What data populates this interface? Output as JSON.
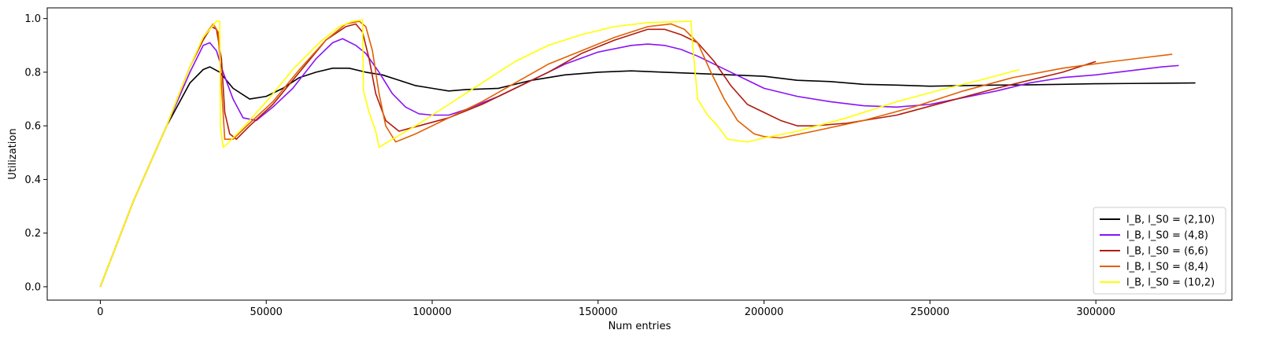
{
  "chart_data": {
    "type": "line",
    "title": "",
    "xlabel": "Num entries",
    "ylabel": "Utilization",
    "xlim": [
      -16000,
      341000
    ],
    "ylim": [
      -0.05,
      1.04
    ],
    "x_ticks": [
      0,
      50000,
      100000,
      150000,
      200000,
      250000,
      300000
    ],
    "y_ticks": [
      0.0,
      0.2,
      0.4,
      0.6,
      0.8,
      1.0
    ],
    "x_tick_labels": [
      "0",
      "50000",
      "100000",
      "150000",
      "200000",
      "250000",
      "300000"
    ],
    "y_tick_labels": [
      "0.0",
      "0.2",
      "0.4",
      "0.6",
      "0.8",
      "1.0"
    ],
    "grid": false,
    "legend_position": "lower-right",
    "series": [
      {
        "name": "l_B, l_S0 = (2,10)",
        "color": "#000000",
        "points": [
          [
            0,
            0.0
          ],
          [
            10000,
            0.32
          ],
          [
            20000,
            0.6
          ],
          [
            27000,
            0.76
          ],
          [
            31000,
            0.81
          ],
          [
            33000,
            0.82
          ],
          [
            36000,
            0.8
          ],
          [
            40000,
            0.74
          ],
          [
            45000,
            0.7
          ],
          [
            50000,
            0.71
          ],
          [
            55000,
            0.74
          ],
          [
            60000,
            0.78
          ],
          [
            65000,
            0.8
          ],
          [
            70000,
            0.815
          ],
          [
            75000,
            0.815
          ],
          [
            80000,
            0.8
          ],
          [
            85000,
            0.79
          ],
          [
            90000,
            0.77
          ],
          [
            95000,
            0.75
          ],
          [
            100000,
            0.74
          ],
          [
            105000,
            0.73
          ],
          [
            110000,
            0.735
          ],
          [
            120000,
            0.74
          ],
          [
            130000,
            0.77
          ],
          [
            140000,
            0.79
          ],
          [
            150000,
            0.8
          ],
          [
            160000,
            0.805
          ],
          [
            170000,
            0.8
          ],
          [
            180000,
            0.795
          ],
          [
            190000,
            0.79
          ],
          [
            200000,
            0.785
          ],
          [
            210000,
            0.77
          ],
          [
            220000,
            0.765
          ],
          [
            230000,
            0.755
          ],
          [
            240000,
            0.752
          ],
          [
            250000,
            0.748
          ],
          [
            260000,
            0.75
          ],
          [
            270000,
            0.752
          ],
          [
            280000,
            0.753
          ],
          [
            290000,
            0.755
          ],
          [
            300000,
            0.757
          ],
          [
            310000,
            0.758
          ],
          [
            320000,
            0.759
          ],
          [
            330000,
            0.76
          ]
        ]
      },
      {
        "name": "l_B, l_S0 = (4,8)",
        "color": "#8a13f5",
        "points": [
          [
            0,
            0.0
          ],
          [
            10000,
            0.32
          ],
          [
            20000,
            0.6
          ],
          [
            27000,
            0.8
          ],
          [
            31000,
            0.9
          ],
          [
            33000,
            0.91
          ],
          [
            35000,
            0.88
          ],
          [
            37000,
            0.8
          ],
          [
            40000,
            0.7
          ],
          [
            43000,
            0.63
          ],
          [
            47000,
            0.62
          ],
          [
            52000,
            0.67
          ],
          [
            58000,
            0.74
          ],
          [
            65000,
            0.85
          ],
          [
            70000,
            0.91
          ],
          [
            73000,
            0.925
          ],
          [
            77000,
            0.9
          ],
          [
            80000,
            0.87
          ],
          [
            84000,
            0.8
          ],
          [
            88000,
            0.72
          ],
          [
            92000,
            0.67
          ],
          [
            96000,
            0.645
          ],
          [
            100000,
            0.64
          ],
          [
            105000,
            0.64
          ],
          [
            110000,
            0.66
          ],
          [
            120000,
            0.71
          ],
          [
            130000,
            0.77
          ],
          [
            140000,
            0.83
          ],
          [
            150000,
            0.875
          ],
          [
            160000,
            0.9
          ],
          [
            165000,
            0.905
          ],
          [
            170000,
            0.9
          ],
          [
            175000,
            0.885
          ],
          [
            180000,
            0.86
          ],
          [
            185000,
            0.83
          ],
          [
            190000,
            0.8
          ],
          [
            195000,
            0.77
          ],
          [
            200000,
            0.74
          ],
          [
            210000,
            0.71
          ],
          [
            220000,
            0.69
          ],
          [
            230000,
            0.675
          ],
          [
            240000,
            0.67
          ],
          [
            250000,
            0.68
          ],
          [
            260000,
            0.705
          ],
          [
            270000,
            0.73
          ],
          [
            280000,
            0.76
          ],
          [
            290000,
            0.78
          ],
          [
            300000,
            0.79
          ],
          [
            310000,
            0.805
          ],
          [
            320000,
            0.82
          ],
          [
            325000,
            0.825
          ]
        ]
      },
      {
        "name": "l_B, l_S0 = (6,6)",
        "color": "#b11c0c",
        "points": [
          [
            0,
            0.0
          ],
          [
            10000,
            0.32
          ],
          [
            20000,
            0.6
          ],
          [
            27000,
            0.82
          ],
          [
            31000,
            0.92
          ],
          [
            33500,
            0.97
          ],
          [
            35000,
            0.96
          ],
          [
            36500,
            0.85
          ],
          [
            37500,
            0.65
          ],
          [
            39000,
            0.57
          ],
          [
            41000,
            0.55
          ],
          [
            45000,
            0.6
          ],
          [
            52000,
            0.68
          ],
          [
            60000,
            0.8
          ],
          [
            68000,
            0.92
          ],
          [
            74000,
            0.97
          ],
          [
            77000,
            0.98
          ],
          [
            79000,
            0.95
          ],
          [
            81000,
            0.85
          ],
          [
            83000,
            0.72
          ],
          [
            86000,
            0.62
          ],
          [
            90000,
            0.58
          ],
          [
            96000,
            0.6
          ],
          [
            105000,
            0.63
          ],
          [
            115000,
            0.68
          ],
          [
            125000,
            0.74
          ],
          [
            135000,
            0.8
          ],
          [
            145000,
            0.87
          ],
          [
            155000,
            0.92
          ],
          [
            165000,
            0.96
          ],
          [
            170000,
            0.96
          ],
          [
            175000,
            0.94
          ],
          [
            180000,
            0.91
          ],
          [
            185000,
            0.84
          ],
          [
            190000,
            0.75
          ],
          [
            195000,
            0.68
          ],
          [
            200000,
            0.65
          ],
          [
            205000,
            0.62
          ],
          [
            210000,
            0.6
          ],
          [
            215000,
            0.6
          ],
          [
            225000,
            0.61
          ],
          [
            240000,
            0.64
          ],
          [
            255000,
            0.69
          ],
          [
            270000,
            0.74
          ],
          [
            280000,
            0.77
          ],
          [
            290000,
            0.8
          ],
          [
            300000,
            0.84
          ]
        ]
      },
      {
        "name": "l_B, l_S0 = (8,4)",
        "color": "#e35f00",
        "points": [
          [
            0,
            0.0
          ],
          [
            10000,
            0.32
          ],
          [
            20000,
            0.6
          ],
          [
            27000,
            0.82
          ],
          [
            31000,
            0.93
          ],
          [
            34000,
            0.98
          ],
          [
            35500,
            0.95
          ],
          [
            36500,
            0.75
          ],
          [
            37500,
            0.55
          ],
          [
            40000,
            0.55
          ],
          [
            45000,
            0.61
          ],
          [
            52000,
            0.69
          ],
          [
            60000,
            0.81
          ],
          [
            68000,
            0.92
          ],
          [
            74000,
            0.98
          ],
          [
            78000,
            0.99
          ],
          [
            80000,
            0.97
          ],
          [
            82000,
            0.88
          ],
          [
            84000,
            0.72
          ],
          [
            86000,
            0.6
          ],
          [
            89000,
            0.54
          ],
          [
            95000,
            0.57
          ],
          [
            105000,
            0.63
          ],
          [
            115000,
            0.69
          ],
          [
            125000,
            0.76
          ],
          [
            135000,
            0.83
          ],
          [
            145000,
            0.88
          ],
          [
            155000,
            0.93
          ],
          [
            165000,
            0.97
          ],
          [
            172000,
            0.98
          ],
          [
            176000,
            0.96
          ],
          [
            180000,
            0.91
          ],
          [
            184000,
            0.8
          ],
          [
            188000,
            0.7
          ],
          [
            192000,
            0.62
          ],
          [
            197000,
            0.57
          ],
          [
            200000,
            0.56
          ],
          [
            205000,
            0.555
          ],
          [
            215000,
            0.58
          ],
          [
            230000,
            0.62
          ],
          [
            245000,
            0.67
          ],
          [
            260000,
            0.73
          ],
          [
            275000,
            0.78
          ],
          [
            290000,
            0.815
          ],
          [
            305000,
            0.84
          ],
          [
            315000,
            0.855
          ],
          [
            323000,
            0.867
          ]
        ]
      },
      {
        "name": "l_B, l_S0 = (10,2)",
        "color": "#ffff00",
        "points": [
          [
            0,
            0.0
          ],
          [
            10000,
            0.32
          ],
          [
            20000,
            0.6
          ],
          [
            27000,
            0.82
          ],
          [
            31000,
            0.93
          ],
          [
            35000,
            0.99
          ],
          [
            36000,
            0.99
          ],
          [
            36200,
            0.6
          ],
          [
            37000,
            0.52
          ],
          [
            38000,
            0.53
          ],
          [
            42000,
            0.58
          ],
          [
            50000,
            0.69
          ],
          [
            58000,
            0.81
          ],
          [
            66000,
            0.91
          ],
          [
            72000,
            0.97
          ],
          [
            76000,
            0.99
          ],
          [
            79000,
            0.995
          ],
          [
            79300,
            0.73
          ],
          [
            81000,
            0.65
          ],
          [
            83000,
            0.58
          ],
          [
            84000,
            0.52
          ],
          [
            88000,
            0.55
          ],
          [
            95000,
            0.6
          ],
          [
            105000,
            0.68
          ],
          [
            115000,
            0.76
          ],
          [
            125000,
            0.84
          ],
          [
            135000,
            0.9
          ],
          [
            145000,
            0.94
          ],
          [
            155000,
            0.97
          ],
          [
            165000,
            0.985
          ],
          [
            178000,
            0.99
          ],
          [
            178500,
            0.9
          ],
          [
            180000,
            0.7
          ],
          [
            183000,
            0.64
          ],
          [
            186000,
            0.6
          ],
          [
            189000,
            0.55
          ],
          [
            195000,
            0.54
          ],
          [
            200000,
            0.555
          ],
          [
            210000,
            0.58
          ],
          [
            225000,
            0.63
          ],
          [
            240000,
            0.69
          ],
          [
            255000,
            0.74
          ],
          [
            265000,
            0.77
          ],
          [
            277000,
            0.81
          ]
        ]
      }
    ]
  }
}
